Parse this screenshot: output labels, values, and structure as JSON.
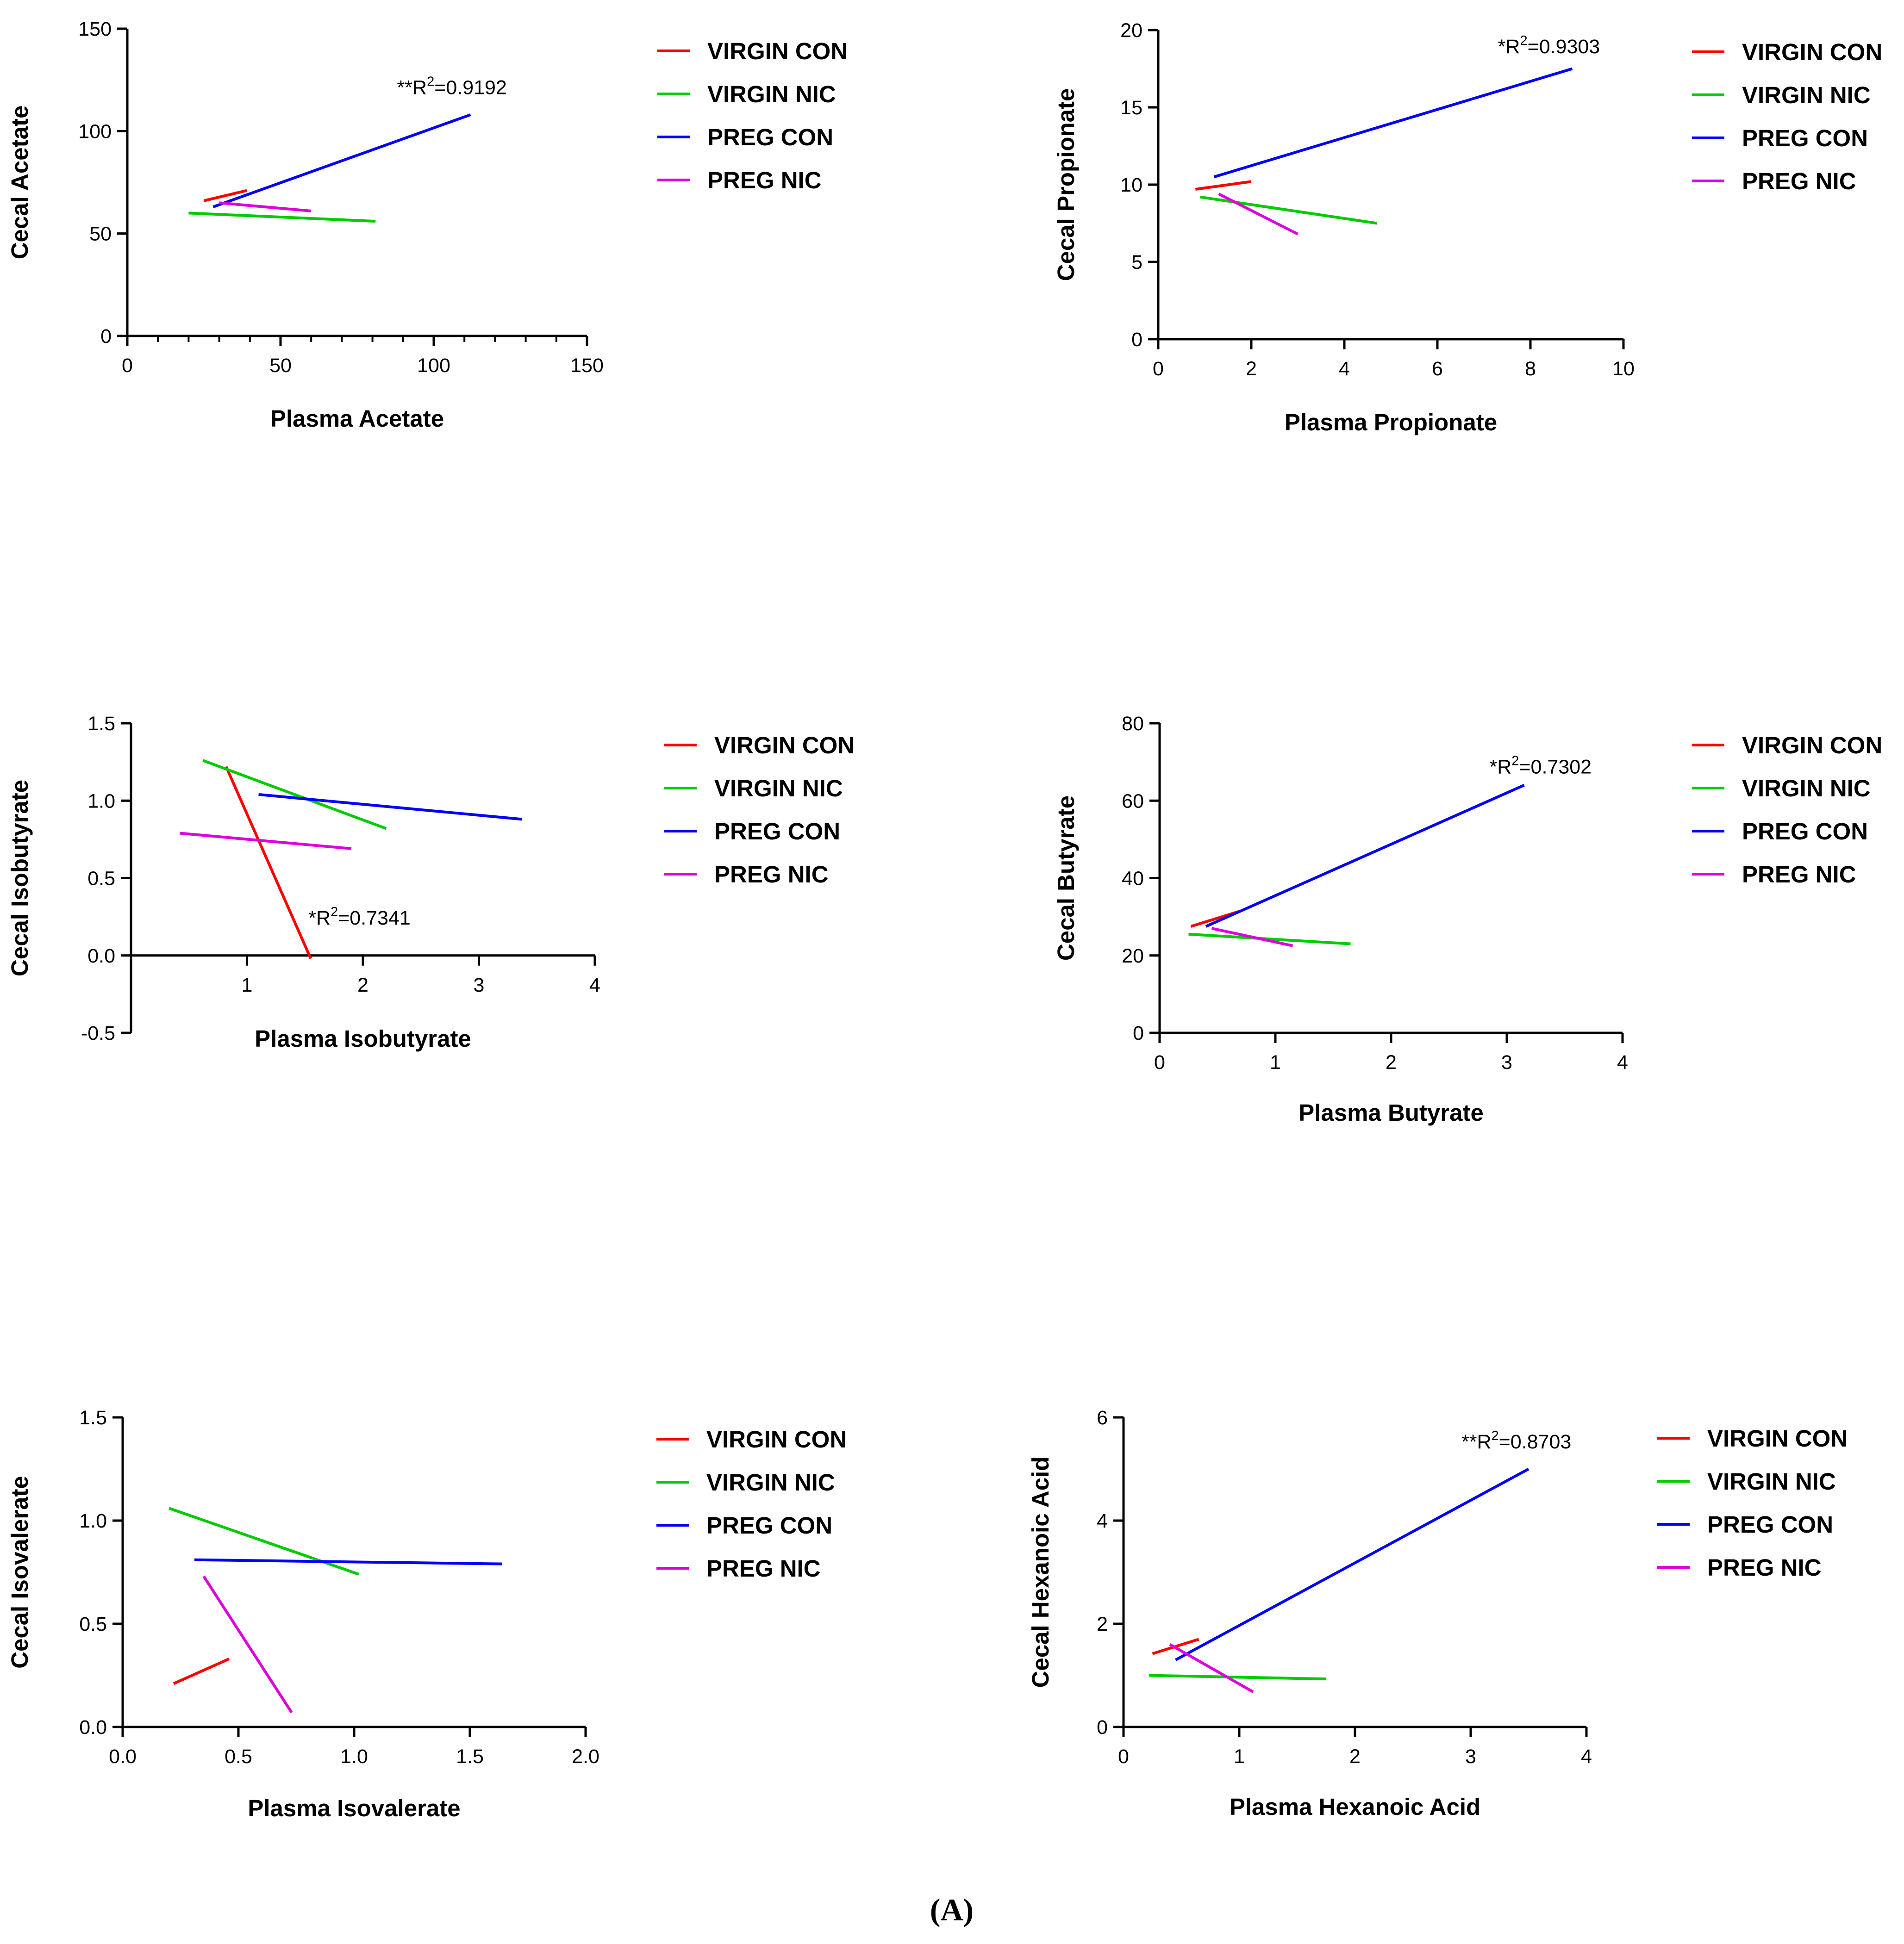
{
  "figure_label": {
    "open": "(",
    "letter": "A",
    "close": ")"
  },
  "colors": {
    "VIRGIN CON": "#ff0000",
    "VIRGIN NIC": "#00cc00",
    "PREG CON": "#0000ff",
    "PREG NIC": "#dd00dd"
  },
  "chart_data": [
    {
      "type": "line",
      "title": "",
      "xlabel": "Plasma Acetate",
      "ylabel": "Cecal Acetate",
      "xlim": [
        0,
        150
      ],
      "ylim": [
        0,
        150
      ],
      "xticks": [
        0,
        50,
        100,
        150
      ],
      "xtick_labels": [
        "0",
        "50",
        "100",
        "150"
      ],
      "yticks": [
        0,
        50,
        100,
        150
      ],
      "ytick_labels": [
        "0",
        "50",
        "100",
        "150"
      ],
      "x_minor_step": 10,
      "legend": [
        "VIRGIN CON",
        "VIRGIN NIC",
        "PREG CON",
        "PREG NIC"
      ],
      "series": [
        {
          "name": "VIRGIN CON",
          "x": [
            25,
            39
          ],
          "y": [
            66,
            71
          ]
        },
        {
          "name": "VIRGIN NIC",
          "x": [
            20,
            81
          ],
          "y": [
            60,
            56
          ]
        },
        {
          "name": "PREG CON",
          "x": [
            28,
            112
          ],
          "y": [
            63,
            108
          ]
        },
        {
          "name": "PREG NIC",
          "x": [
            30,
            60
          ],
          "y": [
            65,
            61
          ]
        }
      ],
      "annotation": {
        "prefix": "**R",
        "sup": "2",
        "value": "=0.9192",
        "x": 88,
        "y": 118
      }
    },
    {
      "type": "line",
      "title": "",
      "xlabel": "Plasma Propionate",
      "ylabel": "Cecal Propionate",
      "xlim": [
        0,
        10
      ],
      "ylim": [
        0,
        20
      ],
      "xticks": [
        0,
        2,
        4,
        6,
        8,
        10
      ],
      "xtick_labels": [
        "0",
        "2",
        "4",
        "6",
        "8",
        "10"
      ],
      "yticks": [
        0,
        5,
        10,
        15,
        20
      ],
      "ytick_labels": [
        "0",
        "5",
        "10",
        "15",
        "20"
      ],
      "legend": [
        "VIRGIN CON",
        "VIRGIN NIC",
        "PREG CON",
        "PREG NIC"
      ],
      "series": [
        {
          "name": "VIRGIN CON",
          "x": [
            0.8,
            2.0
          ],
          "y": [
            9.7,
            10.2
          ]
        },
        {
          "name": "VIRGIN NIC",
          "x": [
            0.9,
            4.7
          ],
          "y": [
            9.2,
            7.5
          ]
        },
        {
          "name": "PREG CON",
          "x": [
            1.2,
            8.9
          ],
          "y": [
            10.5,
            17.5
          ]
        },
        {
          "name": "PREG NIC",
          "x": [
            1.3,
            3.0
          ],
          "y": [
            9.4,
            6.8
          ]
        }
      ],
      "annotation": {
        "prefix": "*R",
        "sup": "2",
        "value": "=0.9303",
        "x": 7.3,
        "y": 18.5
      }
    },
    {
      "type": "line",
      "title": "",
      "xlabel": "Plasma Isobutyrate",
      "ylabel": "Cecal Isobutyrate",
      "xlim": [
        0,
        4
      ],
      "ylim": [
        -0.5,
        1.5
      ],
      "xticks": [
        1,
        2,
        3,
        4
      ],
      "xtick_labels": [
        "1",
        "2",
        "3",
        "4"
      ],
      "yticks": [
        -0.5,
        0,
        0.5,
        1.0,
        1.5
      ],
      "ytick_labels": [
        "-0.5",
        "0.0",
        "0.5",
        "1.0",
        "1.5"
      ],
      "legend": [
        "VIRGIN CON",
        "VIRGIN NIC",
        "PREG CON",
        "PREG NIC"
      ],
      "series": [
        {
          "name": "VIRGIN CON",
          "x": [
            0.82,
            1.55
          ],
          "y": [
            1.22,
            -0.02
          ]
        },
        {
          "name": "VIRGIN NIC",
          "x": [
            0.62,
            2.2
          ],
          "y": [
            1.26,
            0.82
          ]
        },
        {
          "name": "PREG CON",
          "x": [
            1.1,
            3.37
          ],
          "y": [
            1.04,
            0.88
          ]
        },
        {
          "name": "PREG NIC",
          "x": [
            0.42,
            1.9
          ],
          "y": [
            0.79,
            0.69
          ]
        }
      ],
      "annotation": {
        "prefix": "*R",
        "sup": "2",
        "value": "=0.7341",
        "x": 1.53,
        "y": 0.2
      }
    },
    {
      "type": "line",
      "title": "",
      "xlabel": "Plasma Butyrate",
      "ylabel": "Cecal Butyrate",
      "xlim": [
        0,
        4
      ],
      "ylim": [
        0,
        80
      ],
      "xticks": [
        0,
        1,
        2,
        3,
        4
      ],
      "xtick_labels": [
        "0",
        "1",
        "2",
        "3",
        "4"
      ],
      "yticks": [
        0,
        20,
        40,
        60,
        80
      ],
      "ytick_labels": [
        "0",
        "20",
        "40",
        "60",
        "80"
      ],
      "legend": [
        "VIRGIN CON",
        "VIRGIN NIC",
        "PREG CON",
        "PREG NIC"
      ],
      "series": [
        {
          "name": "VIRGIN CON",
          "x": [
            0.27,
            0.7
          ],
          "y": [
            27.5,
            31.5
          ]
        },
        {
          "name": "VIRGIN NIC",
          "x": [
            0.25,
            1.65
          ],
          "y": [
            25.5,
            23
          ]
        },
        {
          "name": "PREG CON",
          "x": [
            0.4,
            3.15
          ],
          "y": [
            27.5,
            64
          ]
        },
        {
          "name": "PREG NIC",
          "x": [
            0.45,
            1.15
          ],
          "y": [
            27,
            22.5
          ]
        }
      ],
      "annotation": {
        "prefix": "*R",
        "sup": "2",
        "value": "=0.7302",
        "x": 2.85,
        "y": 67
      }
    },
    {
      "type": "line",
      "title": "",
      "xlabel": "Plasma Isovalerate",
      "ylabel": "Cecal Isovalerate",
      "xlim": [
        0,
        2.0
      ],
      "ylim": [
        0,
        1.5
      ],
      "xticks": [
        0,
        0.5,
        1.0,
        1.5,
        2.0
      ],
      "xtick_labels": [
        "0.0",
        "0.5",
        "1.0",
        "1.5",
        "2.0"
      ],
      "yticks": [
        0,
        0.5,
        1.0,
        1.5
      ],
      "ytick_labels": [
        "0.0",
        "0.5",
        "1.0",
        "1.5"
      ],
      "legend": [
        "VIRGIN CON",
        "VIRGIN NIC",
        "PREG CON",
        "PREG NIC"
      ],
      "series": [
        {
          "name": "VIRGIN CON",
          "x": [
            0.22,
            0.46
          ],
          "y": [
            0.21,
            0.33
          ]
        },
        {
          "name": "VIRGIN NIC",
          "x": [
            0.2,
            1.02
          ],
          "y": [
            1.06,
            0.74
          ]
        },
        {
          "name": "PREG CON",
          "x": [
            0.31,
            1.64
          ],
          "y": [
            0.81,
            0.79
          ]
        },
        {
          "name": "PREG NIC",
          "x": [
            0.35,
            0.73
          ],
          "y": [
            0.73,
            0.07
          ]
        }
      ]
    },
    {
      "type": "line",
      "title": "",
      "xlabel": "Plasma Hexanoic Acid",
      "ylabel": "Cecal Hexanoic Acid",
      "xlim": [
        0,
        4
      ],
      "ylim": [
        0,
        6
      ],
      "xticks": [
        0,
        1,
        2,
        3,
        4
      ],
      "xtick_labels": [
        "0",
        "1",
        "2",
        "3",
        "4"
      ],
      "yticks": [
        0,
        2,
        4,
        6
      ],
      "ytick_labels": [
        "0",
        "2",
        "4",
        "6"
      ],
      "legend": [
        "VIRGIN CON",
        "VIRGIN NIC",
        "PREG CON",
        "PREG NIC"
      ],
      "series": [
        {
          "name": "VIRGIN CON",
          "x": [
            0.25,
            0.65
          ],
          "y": [
            1.42,
            1.7
          ]
        },
        {
          "name": "VIRGIN NIC",
          "x": [
            0.22,
            1.75
          ],
          "y": [
            1.0,
            0.93
          ]
        },
        {
          "name": "PREG CON",
          "x": [
            0.45,
            3.5
          ],
          "y": [
            1.3,
            5.0
          ]
        },
        {
          "name": "PREG NIC",
          "x": [
            0.4,
            1.12
          ],
          "y": [
            1.6,
            0.68
          ]
        }
      ],
      "annotation": {
        "prefix": "**R",
        "sup": "2",
        "value": "=0.8703",
        "x": 2.92,
        "y": 5.4
      }
    }
  ]
}
